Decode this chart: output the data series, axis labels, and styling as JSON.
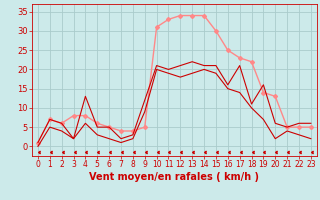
{
  "xlabel": "Vent moyen/en rafales ( km/h )",
  "background_color": "#cceaea",
  "grid_color": "#aacccc",
  "xlim": [
    -0.5,
    23.5
  ],
  "ylim": [
    -2.5,
    37
  ],
  "yticks": [
    0,
    5,
    10,
    15,
    20,
    25,
    30,
    35
  ],
  "xticks": [
    0,
    1,
    2,
    3,
    4,
    5,
    6,
    7,
    8,
    9,
    10,
    11,
    12,
    13,
    14,
    15,
    16,
    17,
    18,
    19,
    20,
    21,
    22,
    23
  ],
  "xtick_labels": [
    "0",
    "1",
    "2",
    "3",
    "4",
    "5",
    "6",
    "7",
    "8",
    "9",
    "10",
    "11",
    "12",
    "13",
    "14",
    "15",
    "16",
    "17",
    "18",
    "19",
    "20",
    "21",
    "22",
    "23"
  ],
  "hours": [
    0,
    1,
    2,
    3,
    4,
    5,
    6,
    7,
    8,
    9,
    10,
    11,
    12,
    13,
    14,
    15,
    16,
    17,
    18,
    19,
    20,
    21,
    22,
    23
  ],
  "wind_avg": [
    0,
    5,
    4,
    2,
    6,
    3,
    2,
    1,
    2,
    9,
    20,
    19,
    18,
    19,
    20,
    19,
    15,
    14,
    10,
    7,
    2,
    4,
    3,
    2
  ],
  "wind_gust_detail": [
    1,
    7,
    6,
    2,
    13,
    5,
    5,
    2,
    3,
    12,
    21,
    20,
    21,
    22,
    21,
    21,
    16,
    21,
    11,
    16,
    6,
    5,
    6,
    6
  ],
  "wind_smooth": [
    1,
    7,
    6,
    8,
    8,
    6,
    5,
    4,
    4,
    5,
    31,
    33,
    34,
    34,
    34,
    30,
    25,
    23,
    22,
    14,
    13,
    5,
    5,
    5
  ],
  "wind_dir_y": [
    -1.5,
    -1.5,
    -1.5,
    -1.5,
    -1.5,
    -1.5,
    -1.5,
    -1.5,
    -1.5,
    -1.5,
    -1.5,
    -1.5,
    -1.5,
    -1.5,
    -1.5,
    -1.5,
    -1.5,
    -1.5,
    -1.5,
    -1.5,
    -1.5,
    -1.5,
    -1.5,
    -1.5
  ],
  "color_dark_red": "#cc0000",
  "color_light_red": "#ff8888",
  "xlabel_color": "#cc0000",
  "xlabel_fontsize": 7,
  "tick_color": "#cc0000",
  "tick_fontsize": 5.5,
  "ytick_fontsize": 6
}
